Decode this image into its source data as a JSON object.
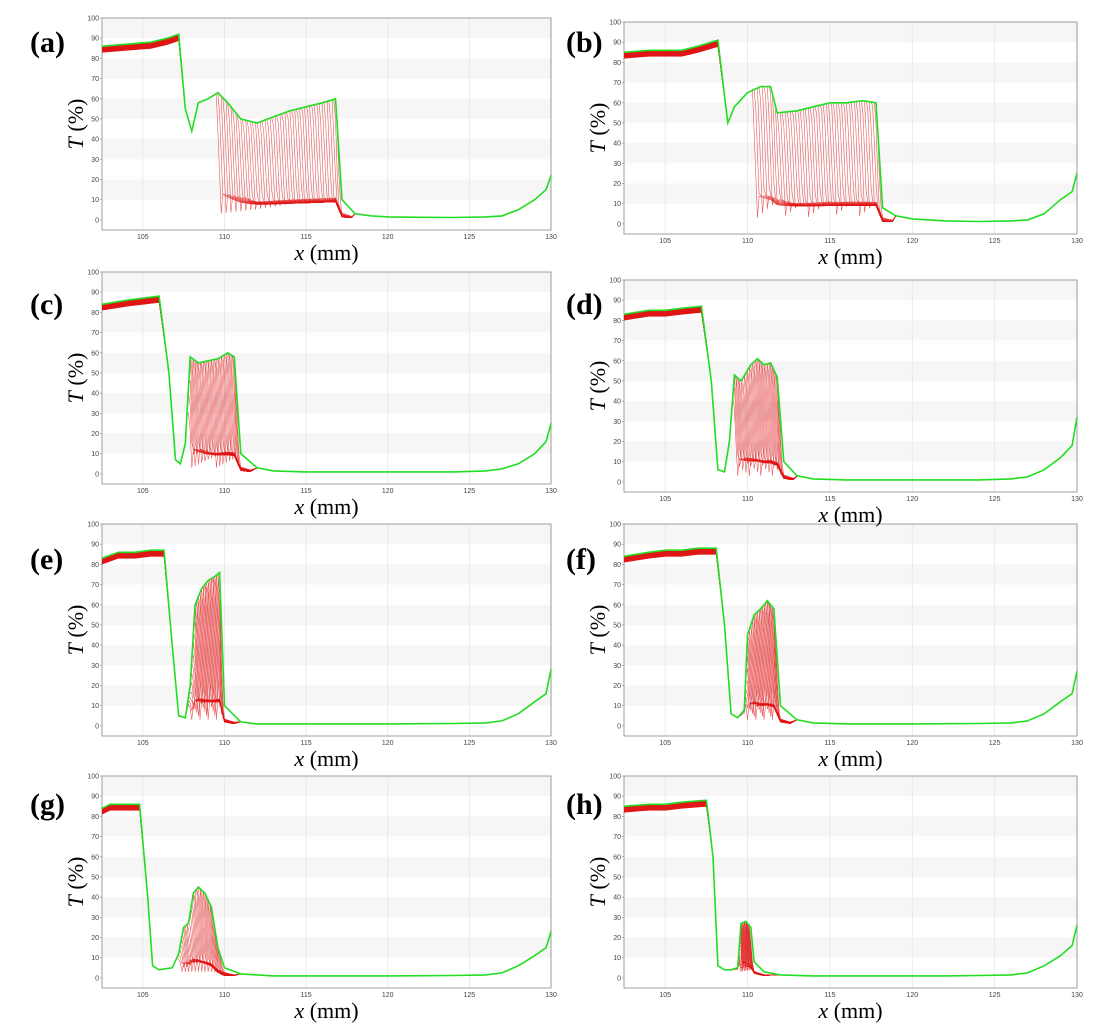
{
  "figure": {
    "title": ""
  },
  "chart_data": [
    {
      "panel_label": "(a)",
      "type": "line",
      "xlabel_var": "x",
      "xlabel_unit": " (mm)",
      "ylabel_var": "T",
      "ylabel_unit": " (%)",
      "xlim": [
        102.5,
        130
      ],
      "ylim": [
        -5,
        100
      ],
      "x_ticks": [
        105,
        110,
        115,
        120,
        125,
        130
      ],
      "y_ticks": [
        0,
        10,
        20,
        30,
        40,
        50,
        60,
        70,
        80,
        90,
        100
      ],
      "grid": true,
      "colors": {
        "final": "#22dd22",
        "family": "#e01515",
        "band": "#f6f6f6"
      },
      "final_curve": [
        [
          102.5,
          86
        ],
        [
          104,
          87
        ],
        [
          105.5,
          88
        ],
        [
          106.5,
          90
        ],
        [
          107.2,
          92
        ],
        [
          107.6,
          55
        ],
        [
          108,
          44
        ],
        [
          108.4,
          58
        ],
        [
          109,
          60
        ],
        [
          109.6,
          63
        ],
        [
          110.2,
          58
        ],
        [
          111,
          50
        ],
        [
          112,
          48
        ],
        [
          113,
          51
        ],
        [
          114,
          54
        ],
        [
          115,
          56
        ],
        [
          116,
          58
        ],
        [
          116.8,
          60
        ],
        [
          117.2,
          10
        ],
        [
          118,
          3
        ],
        [
          119,
          2
        ],
        [
          120,
          1.5
        ],
        [
          122,
          1.3
        ],
        [
          124,
          1.2
        ],
        [
          126,
          1.5
        ],
        [
          127,
          2
        ],
        [
          128,
          5
        ],
        [
          129,
          10
        ],
        [
          129.7,
          15
        ],
        [
          130,
          22
        ]
      ],
      "family_range": {
        "start_x": 108.4,
        "end_x_min": 109.8,
        "end_x_max": 117.2,
        "count": 50
      }
    },
    {
      "panel_label": "(b)",
      "type": "line",
      "xlabel_var": "x",
      "xlabel_unit": " (mm)",
      "ylabel_var": "T",
      "ylabel_unit": " (%)",
      "xlim": [
        102.5,
        130
      ],
      "ylim": [
        -5,
        100
      ],
      "x_ticks": [
        105,
        110,
        115,
        120,
        125,
        130
      ],
      "y_ticks": [
        0,
        10,
        20,
        30,
        40,
        50,
        60,
        70,
        80,
        90,
        100
      ],
      "grid": true,
      "colors": {
        "final": "#22dd22",
        "family": "#e01515",
        "band": "#f6f6f6"
      },
      "final_curve": [
        [
          102.5,
          85
        ],
        [
          104,
          86
        ],
        [
          106,
          86
        ],
        [
          107,
          88
        ],
        [
          108.2,
          91
        ],
        [
          108.8,
          50
        ],
        [
          109.2,
          58
        ],
        [
          110,
          65
        ],
        [
          110.8,
          68
        ],
        [
          111.4,
          68
        ],
        [
          111.8,
          55
        ],
        [
          113,
          56
        ],
        [
          114,
          58
        ],
        [
          115,
          60
        ],
        [
          116,
          60
        ],
        [
          117,
          61
        ],
        [
          117.8,
          60
        ],
        [
          118.2,
          8
        ],
        [
          119,
          4
        ],
        [
          120,
          2.5
        ],
        [
          122,
          1.5
        ],
        [
          124,
          1.2
        ],
        [
          126,
          1.5
        ],
        [
          127,
          2
        ],
        [
          128,
          5
        ],
        [
          129,
          12
        ],
        [
          129.7,
          16
        ],
        [
          130,
          25
        ]
      ],
      "family_range": {
        "start_x": 109.0,
        "end_x_min": 110.6,
        "end_x_max": 118.2,
        "count": 50
      }
    },
    {
      "panel_label": "(c)",
      "type": "line",
      "xlabel_var": "x",
      "xlabel_unit": " (mm)",
      "ylabel_var": "T",
      "ylabel_unit": " (%)",
      "xlim": [
        102.5,
        130
      ],
      "ylim": [
        -5,
        100
      ],
      "x_ticks": [
        105,
        110,
        115,
        120,
        125,
        130
      ],
      "y_ticks": [
        0,
        10,
        20,
        30,
        40,
        50,
        60,
        70,
        80,
        90,
        100
      ],
      "grid": true,
      "colors": {
        "final": "#22dd22",
        "family": "#e01515",
        "band": "#f6f6f6"
      },
      "final_curve": [
        [
          102.5,
          84
        ],
        [
          104,
          86
        ],
        [
          105,
          87
        ],
        [
          106,
          88
        ],
        [
          106.6,
          50
        ],
        [
          107,
          7
        ],
        [
          107.3,
          5
        ],
        [
          107.6,
          15
        ],
        [
          107.9,
          58
        ],
        [
          108.4,
          55
        ],
        [
          109,
          56
        ],
        [
          109.6,
          57
        ],
        [
          110.2,
          60
        ],
        [
          110.6,
          58
        ],
        [
          111,
          10
        ],
        [
          112,
          3
        ],
        [
          113,
          1.5
        ],
        [
          115,
          1
        ],
        [
          118,
          1
        ],
        [
          121,
          1
        ],
        [
          124,
          1
        ],
        [
          126,
          1.5
        ],
        [
          127,
          2.5
        ],
        [
          128,
          5
        ],
        [
          129,
          10
        ],
        [
          129.7,
          16
        ],
        [
          130,
          25
        ]
      ],
      "family_range": {
        "start_x": 107.7,
        "end_x_min": 108.0,
        "end_x_max": 111.0,
        "count": 45
      }
    },
    {
      "panel_label": "(d)",
      "type": "line",
      "xlabel_var": "x",
      "xlabel_unit": " (mm)",
      "ylabel_var": "T",
      "ylabel_unit": " (%)",
      "xlim": [
        102.5,
        130
      ],
      "ylim": [
        -5,
        100
      ],
      "x_ticks": [
        105,
        110,
        115,
        120,
        125,
        130
      ],
      "y_ticks": [
        0,
        10,
        20,
        30,
        40,
        50,
        60,
        70,
        80,
        90,
        100
      ],
      "grid": true,
      "colors": {
        "final": "#22dd22",
        "family": "#e01515",
        "band": "#f6f6f6"
      },
      "final_curve": [
        [
          102.5,
          83
        ],
        [
          104,
          85
        ],
        [
          105,
          85
        ],
        [
          106,
          86
        ],
        [
          107.2,
          87
        ],
        [
          107.8,
          50
        ],
        [
          108.2,
          6
        ],
        [
          108.6,
          5
        ],
        [
          108.9,
          20
        ],
        [
          109.2,
          53
        ],
        [
          109.6,
          50
        ],
        [
          110.2,
          58
        ],
        [
          110.6,
          61
        ],
        [
          111,
          58
        ],
        [
          111.4,
          59
        ],
        [
          111.8,
          52
        ],
        [
          112.2,
          10
        ],
        [
          113,
          3
        ],
        [
          114,
          1.5
        ],
        [
          116,
          1
        ],
        [
          120,
          1
        ],
        [
          124,
          1
        ],
        [
          126,
          1.5
        ],
        [
          127,
          2.5
        ],
        [
          128,
          6
        ],
        [
          129,
          12
        ],
        [
          129.7,
          18
        ],
        [
          130,
          32
        ]
      ],
      "family_range": {
        "start_x": 109.0,
        "end_x_min": 109.4,
        "end_x_max": 112.2,
        "count": 45
      }
    },
    {
      "panel_label": "(e)",
      "type": "line",
      "xlabel_var": "x",
      "xlabel_unit": " (mm)",
      "ylabel_var": "T",
      "ylabel_unit": " (%)",
      "xlim": [
        102.5,
        130
      ],
      "ylim": [
        -5,
        100
      ],
      "x_ticks": [
        105,
        110,
        115,
        120,
        125,
        130
      ],
      "y_ticks": [
        0,
        10,
        20,
        30,
        40,
        50,
        60,
        70,
        80,
        90,
        100
      ],
      "grid": true,
      "colors": {
        "final": "#22dd22",
        "family": "#e01515",
        "band": "#f6f6f6"
      },
      "final_curve": [
        [
          102.5,
          83
        ],
        [
          103.5,
          86
        ],
        [
          104.5,
          86
        ],
        [
          105.5,
          87
        ],
        [
          106.3,
          87
        ],
        [
          106.8,
          40
        ],
        [
          107.2,
          5
        ],
        [
          107.6,
          4
        ],
        [
          107.9,
          20
        ],
        [
          108.2,
          60
        ],
        [
          108.6,
          68
        ],
        [
          109,
          72
        ],
        [
          109.4,
          74
        ],
        [
          109.7,
          76
        ],
        [
          110,
          10
        ],
        [
          111,
          2
        ],
        [
          112,
          1
        ],
        [
          115,
          1
        ],
        [
          120,
          1
        ],
        [
          124,
          1.2
        ],
        [
          126,
          1.5
        ],
        [
          127,
          2.5
        ],
        [
          128,
          6
        ],
        [
          129,
          12
        ],
        [
          129.7,
          16
        ],
        [
          130,
          28
        ]
      ],
      "family_range": {
        "start_x": 107.8,
        "end_x_min": 108.0,
        "end_x_max": 110.0,
        "count": 45
      }
    },
    {
      "panel_label": "(f)",
      "type": "line",
      "xlabel_var": "x",
      "xlabel_unit": " (mm)",
      "ylabel_var": "T",
      "ylabel_unit": " (%)",
      "xlim": [
        102.5,
        130
      ],
      "ylim": [
        -5,
        100
      ],
      "x_ticks": [
        105,
        110,
        115,
        120,
        125,
        130
      ],
      "y_ticks": [
        0,
        10,
        20,
        30,
        40,
        50,
        60,
        70,
        80,
        90,
        100
      ],
      "grid": true,
      "colors": {
        "final": "#22dd22",
        "family": "#e01515",
        "band": "#f6f6f6"
      },
      "final_curve": [
        [
          102.5,
          84
        ],
        [
          104,
          86
        ],
        [
          105,
          87
        ],
        [
          106,
          87
        ],
        [
          107,
          88
        ],
        [
          108.1,
          88
        ],
        [
          108.6,
          50
        ],
        [
          109,
          6
        ],
        [
          109.4,
          4
        ],
        [
          109.8,
          8
        ],
        [
          110,
          45
        ],
        [
          110.4,
          55
        ],
        [
          110.8,
          58
        ],
        [
          111.2,
          62
        ],
        [
          111.6,
          58
        ],
        [
          112,
          10
        ],
        [
          113,
          3
        ],
        [
          114,
          1.5
        ],
        [
          116,
          1
        ],
        [
          120,
          1
        ],
        [
          124,
          1.2
        ],
        [
          126,
          1.5
        ],
        [
          127,
          2.5
        ],
        [
          128,
          6
        ],
        [
          129,
          12
        ],
        [
          129.7,
          16
        ],
        [
          130,
          27
        ]
      ],
      "family_range": {
        "start_x": 109.8,
        "end_x_min": 110.0,
        "end_x_max": 112.0,
        "count": 45
      }
    },
    {
      "panel_label": "(g)",
      "type": "line",
      "xlabel_var": "x",
      "xlabel_unit": " (mm)",
      "ylabel_var": "T",
      "ylabel_unit": " (%)",
      "xlim": [
        102.5,
        130
      ],
      "ylim": [
        -5,
        100
      ],
      "x_ticks": [
        105,
        110,
        115,
        120,
        125,
        130
      ],
      "y_ticks": [
        0,
        10,
        20,
        30,
        40,
        50,
        60,
        70,
        80,
        90,
        100
      ],
      "grid": true,
      "colors": {
        "final": "#22dd22",
        "family": "#e01515",
        "band": "#f6f6f6"
      },
      "final_curve": [
        [
          102.5,
          84
        ],
        [
          103,
          86
        ],
        [
          104,
          86
        ],
        [
          104.8,
          86
        ],
        [
          105.3,
          40
        ],
        [
          105.6,
          6
        ],
        [
          106,
          4
        ],
        [
          106.8,
          5
        ],
        [
          107.2,
          12
        ],
        [
          107.5,
          25
        ],
        [
          107.8,
          27
        ],
        [
          108.1,
          42
        ],
        [
          108.4,
          45
        ],
        [
          108.8,
          42
        ],
        [
          109.2,
          35
        ],
        [
          109.6,
          15
        ],
        [
          110,
          5
        ],
        [
          111,
          2
        ],
        [
          113,
          1
        ],
        [
          116,
          1
        ],
        [
          120,
          1
        ],
        [
          124,
          1.2
        ],
        [
          126,
          1.5
        ],
        [
          127,
          2.5
        ],
        [
          128,
          6
        ],
        [
          129,
          11
        ],
        [
          129.7,
          15
        ],
        [
          130,
          23
        ]
      ],
      "family_range": {
        "start_x": 107.0,
        "end_x_min": 107.4,
        "end_x_max": 110.0,
        "count": 40
      }
    },
    {
      "panel_label": "(h)",
      "type": "line",
      "xlabel_var": "x",
      "xlabel_unit": " (mm)",
      "ylabel_var": "T",
      "ylabel_unit": " (%)",
      "xlim": [
        102.5,
        130
      ],
      "ylim": [
        -5,
        100
      ],
      "x_ticks": [
        105,
        110,
        115,
        120,
        125,
        130
      ],
      "y_ticks": [
        0,
        10,
        20,
        30,
        40,
        50,
        60,
        70,
        80,
        90,
        100
      ],
      "grid": true,
      "colors": {
        "final": "#22dd22",
        "family": "#e01515",
        "band": "#f6f6f6"
      },
      "final_curve": [
        [
          102.5,
          85
        ],
        [
          104,
          86
        ],
        [
          105,
          86
        ],
        [
          106,
          87
        ],
        [
          107.5,
          88
        ],
        [
          107.9,
          60
        ],
        [
          108.2,
          6
        ],
        [
          108.6,
          4
        ],
        [
          109,
          4
        ],
        [
          109.4,
          5
        ],
        [
          109.6,
          27
        ],
        [
          109.9,
          28
        ],
        [
          110.2,
          25
        ],
        [
          110.4,
          8
        ],
        [
          111,
          3
        ],
        [
          112,
          1.5
        ],
        [
          114,
          1
        ],
        [
          118,
          1
        ],
        [
          122,
          1
        ],
        [
          124,
          1.2
        ],
        [
          126,
          1.5
        ],
        [
          127,
          2.5
        ],
        [
          128,
          6
        ],
        [
          129,
          11
        ],
        [
          129.7,
          16
        ],
        [
          130,
          26
        ]
      ],
      "family_range": {
        "start_x": 109.4,
        "end_x_min": 109.6,
        "end_x_max": 110.4,
        "count": 40
      }
    }
  ]
}
